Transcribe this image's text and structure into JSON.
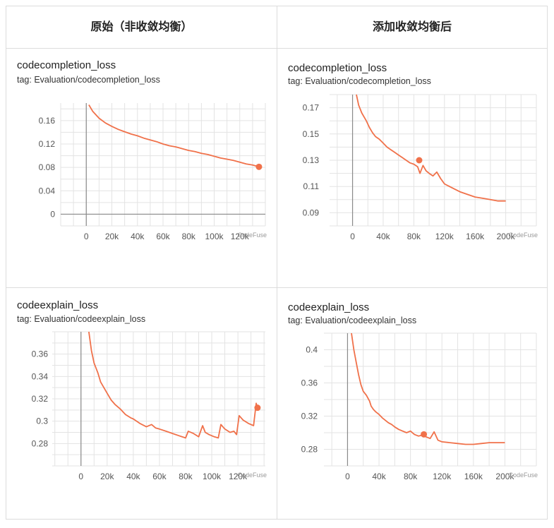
{
  "headers": {
    "left": "原始（非收敛均衡）",
    "right": "添加收敛均衡后"
  },
  "watermark": "CodeFuse",
  "accent_color": "#f0714a",
  "chart_data": [
    {
      "id": "tl",
      "type": "line",
      "title": "codecompletion_loss",
      "tag": "tag: Evaluation/codecompletion_loss",
      "xlim": [
        -20000,
        140000
      ],
      "ylim": [
        -0.02,
        0.19
      ],
      "xticks": [
        0,
        20000,
        40000,
        60000,
        80000,
        100000,
        120000
      ],
      "xtick_labels": [
        "0",
        "20k",
        "40k",
        "60k",
        "80k",
        "100k",
        "120k"
      ],
      "yticks": [
        0,
        0.04,
        0.08,
        0.12,
        0.16
      ],
      "ytick_labels": [
        "0",
        "0.04",
        "0.08",
        "0.12",
        "0.16"
      ],
      "series": [
        {
          "x": [
            2000,
            5000,
            10000,
            15000,
            20000,
            25000,
            30000,
            35000,
            40000,
            45000,
            50000,
            55000,
            60000,
            65000,
            70000,
            75000,
            80000,
            85000,
            90000,
            95000,
            100000,
            105000,
            110000,
            115000,
            120000,
            125000,
            130000,
            135000
          ],
          "y": [
            0.187,
            0.176,
            0.164,
            0.156,
            0.15,
            0.145,
            0.141,
            0.137,
            0.134,
            0.13,
            0.127,
            0.124,
            0.12,
            0.117,
            0.115,
            0.112,
            0.109,
            0.107,
            0.104,
            0.102,
            0.099,
            0.096,
            0.094,
            0.092,
            0.089,
            0.086,
            0.084,
            0.081
          ]
        }
      ],
      "marker": {
        "x": 135000,
        "y": 0.081
      }
    },
    {
      "id": "tr",
      "type": "line",
      "title": "codecompletion_loss",
      "tag": "tag: Evaluation/codecompletion_loss",
      "xlim": [
        -30000,
        240000
      ],
      "ylim": [
        0.08,
        0.18
      ],
      "xticks": [
        0,
        40000,
        80000,
        120000,
        160000,
        200000
      ],
      "xtick_labels": [
        "0",
        "40k",
        "80k",
        "120k",
        "160k",
        "200k"
      ],
      "yticks": [
        0.09,
        0.11,
        0.13,
        0.15,
        0.17
      ],
      "ytick_labels": [
        "0.09",
        "0.11",
        "0.13",
        "0.15",
        "0.17"
      ],
      "series": [
        {
          "x": [
            5000,
            8000,
            12000,
            15000,
            18000,
            22000,
            26000,
            30000,
            35000,
            40000,
            45000,
            50000,
            55000,
            60000,
            65000,
            70000,
            75000,
            80000,
            85000,
            88000,
            92000,
            96000,
            100000,
            105000,
            110000,
            115000,
            120000,
            130000,
            140000,
            150000,
            160000,
            170000,
            180000,
            190000,
            200000
          ],
          "y": [
            0.18,
            0.172,
            0.166,
            0.163,
            0.16,
            0.155,
            0.151,
            0.148,
            0.146,
            0.143,
            0.14,
            0.138,
            0.136,
            0.134,
            0.132,
            0.13,
            0.128,
            0.127,
            0.125,
            0.12,
            0.126,
            0.122,
            0.12,
            0.118,
            0.121,
            0.116,
            0.112,
            0.109,
            0.106,
            0.104,
            0.102,
            0.101,
            0.1,
            0.099,
            0.099
          ]
        }
      ],
      "marker": {
        "x": 87000,
        "y": 0.13
      }
    },
    {
      "id": "bl",
      "type": "line",
      "title": "codeexplain_loss",
      "tag": "tag: Evaluation/codeexplain_loss",
      "xlim": [
        -22000,
        141000
      ],
      "ylim": [
        0.26,
        0.38
      ],
      "xticks": [
        0,
        20000,
        40000,
        60000,
        80000,
        100000,
        120000
      ],
      "xtick_labels": [
        "0",
        "20k",
        "40k",
        "60k",
        "80k",
        "100k",
        "120k"
      ],
      "yticks": [
        0.28,
        0.3,
        0.32,
        0.34,
        0.36
      ],
      "ytick_labels": [
        "0.28",
        "0.3",
        "0.32",
        "0.34",
        "0.36"
      ],
      "series": [
        {
          "x": [
            6000,
            8000,
            10000,
            13000,
            15000,
            18000,
            20000,
            23000,
            26000,
            30000,
            34000,
            38000,
            40000,
            45000,
            50000,
            54000,
            57000,
            60000,
            65000,
            70000,
            75000,
            80000,
            82000,
            86000,
            90000,
            93000,
            95000,
            98000,
            102000,
            105000,
            107000,
            110000,
            114000,
            117000,
            119000,
            121000,
            124000,
            128000,
            132000,
            134000,
            135000
          ],
          "y": [
            0.38,
            0.363,
            0.352,
            0.343,
            0.335,
            0.329,
            0.325,
            0.319,
            0.315,
            0.311,
            0.306,
            0.303,
            0.302,
            0.298,
            0.295,
            0.297,
            0.294,
            0.293,
            0.291,
            0.289,
            0.287,
            0.285,
            0.291,
            0.289,
            0.286,
            0.296,
            0.29,
            0.288,
            0.286,
            0.285,
            0.297,
            0.293,
            0.29,
            0.291,
            0.288,
            0.305,
            0.301,
            0.298,
            0.296,
            0.316,
            0.312
          ]
        }
      ],
      "marker": {
        "x": 135000,
        "y": 0.312
      }
    },
    {
      "id": "br",
      "type": "line",
      "title": "codeexplain_loss",
      "tag": "tag: Evaluation/codeexplain_loss",
      "xlim": [
        -30000,
        240000
      ],
      "ylim": [
        0.26,
        0.42
      ],
      "xticks": [
        0,
        40000,
        80000,
        120000,
        160000,
        200000
      ],
      "xtick_labels": [
        "0",
        "40k",
        "80k",
        "120k",
        "160k",
        "200k"
      ],
      "yticks": [
        0.28,
        0.32,
        0.36,
        0.4
      ],
      "ytick_labels": [
        "0.28",
        "0.32",
        "0.36",
        "0.4"
      ],
      "series": [
        {
          "x": [
            5000,
            8000,
            11000,
            14000,
            17000,
            20000,
            24000,
            28000,
            30000,
            33000,
            36000,
            40000,
            44000,
            48000,
            52000,
            56000,
            60000,
            65000,
            70000,
            75000,
            80000,
            85000,
            90000,
            95000,
            100000,
            105000,
            110000,
            115000,
            120000,
            130000,
            140000,
            150000,
            160000,
            170000,
            180000,
            190000,
            200000
          ],
          "y": [
            0.42,
            0.4,
            0.385,
            0.37,
            0.358,
            0.35,
            0.345,
            0.338,
            0.332,
            0.328,
            0.325,
            0.322,
            0.318,
            0.315,
            0.312,
            0.31,
            0.307,
            0.304,
            0.302,
            0.3,
            0.302,
            0.298,
            0.296,
            0.297,
            0.295,
            0.293,
            0.301,
            0.291,
            0.289,
            0.288,
            0.287,
            0.286,
            0.286,
            0.287,
            0.288,
            0.288,
            0.288
          ]
        }
      ],
      "marker": {
        "x": 97000,
        "y": 0.298
      }
    }
  ]
}
